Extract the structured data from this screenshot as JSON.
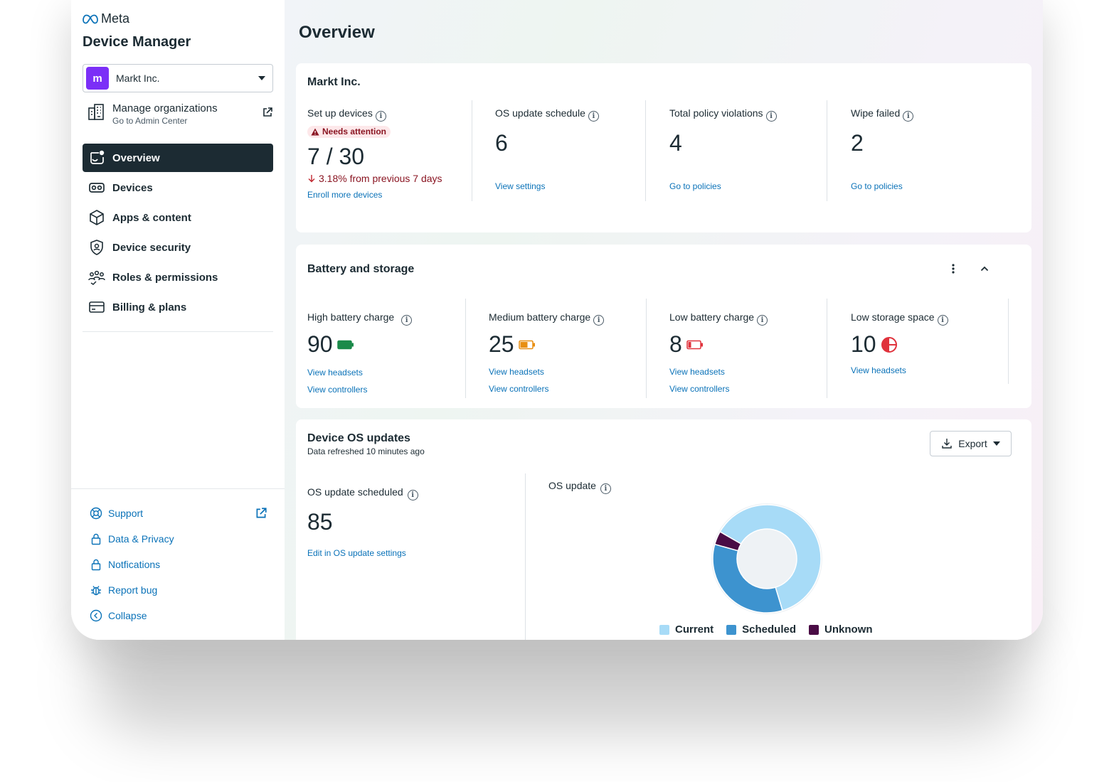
{
  "brand": {
    "name": "Meta"
  },
  "app": {
    "title": "Device Manager"
  },
  "org": {
    "name": "Markt Inc.",
    "logo_letter": "m"
  },
  "manage": {
    "title": "Manage organizations",
    "subtitle": "Go to Admin Center"
  },
  "nav": {
    "items": [
      {
        "label": "Overview",
        "icon": "overview-icon",
        "active": true
      },
      {
        "label": "Devices",
        "icon": "headset-icon"
      },
      {
        "label": "Apps & content",
        "icon": "box-icon"
      },
      {
        "label": "Device security",
        "icon": "shield-icon"
      },
      {
        "label": "Roles & permissions",
        "icon": "people-icon"
      },
      {
        "label": "Billing & plans",
        "icon": "card-icon"
      }
    ]
  },
  "footer": {
    "items": [
      {
        "label": "Support",
        "icon": "lifebuoy-icon"
      },
      {
        "label": "Data & Privacy",
        "icon": "lock-icon"
      },
      {
        "label": "Notfications",
        "icon": "lock-icon"
      },
      {
        "label": "Report bug",
        "icon": "bug-icon"
      },
      {
        "label": "Collapse",
        "icon": "chevron-left-icon"
      }
    ]
  },
  "page": {
    "title": "Overview"
  },
  "summary": {
    "title": "Markt Inc.",
    "setup": {
      "label": "Set up devices",
      "badge": "Needs attention",
      "value": "7 / 30",
      "trend": "3.18% from previous 7 days",
      "link": "Enroll more devices"
    },
    "os_schedule": {
      "label": "OS update schedule",
      "value": "6",
      "link": "View settings"
    },
    "violations": {
      "label": "Total policy violations",
      "value": "4",
      "link": "Go to policies"
    },
    "wipe": {
      "label": "Wipe failed",
      "value": "2",
      "link": "Go to policies"
    }
  },
  "battery": {
    "title": "Battery and storage",
    "view_headsets": "View headsets",
    "view_controllers": "View controllers",
    "high": {
      "label": "High battery charge",
      "value": "90",
      "color": "#1b8a4a"
    },
    "medium": {
      "label": "Medium battery charge",
      "value": "25",
      "color": "#e88e11"
    },
    "low": {
      "label": "Low battery charge",
      "value": "8",
      "color": "#e0323c"
    },
    "storage": {
      "label": "Low storage space",
      "value": "10",
      "color": "#e0323c"
    }
  },
  "os_updates": {
    "title": "Device OS updates",
    "subtitle": "Data refreshed 10 minutes ago",
    "export_label": "Export",
    "scheduled": {
      "label": "OS update scheduled",
      "value": "85",
      "link": "Edit in OS update settings"
    },
    "chart_title": "OS update"
  },
  "chart_data": {
    "type": "pie",
    "title": "OS update",
    "categories": [
      "Current",
      "Scheduled",
      "Unknown"
    ],
    "values": [
      62,
      34,
      4
    ],
    "colors": [
      "#a7dbf7",
      "#3d93cf",
      "#4a0c45"
    ],
    "legend": "bottom"
  }
}
